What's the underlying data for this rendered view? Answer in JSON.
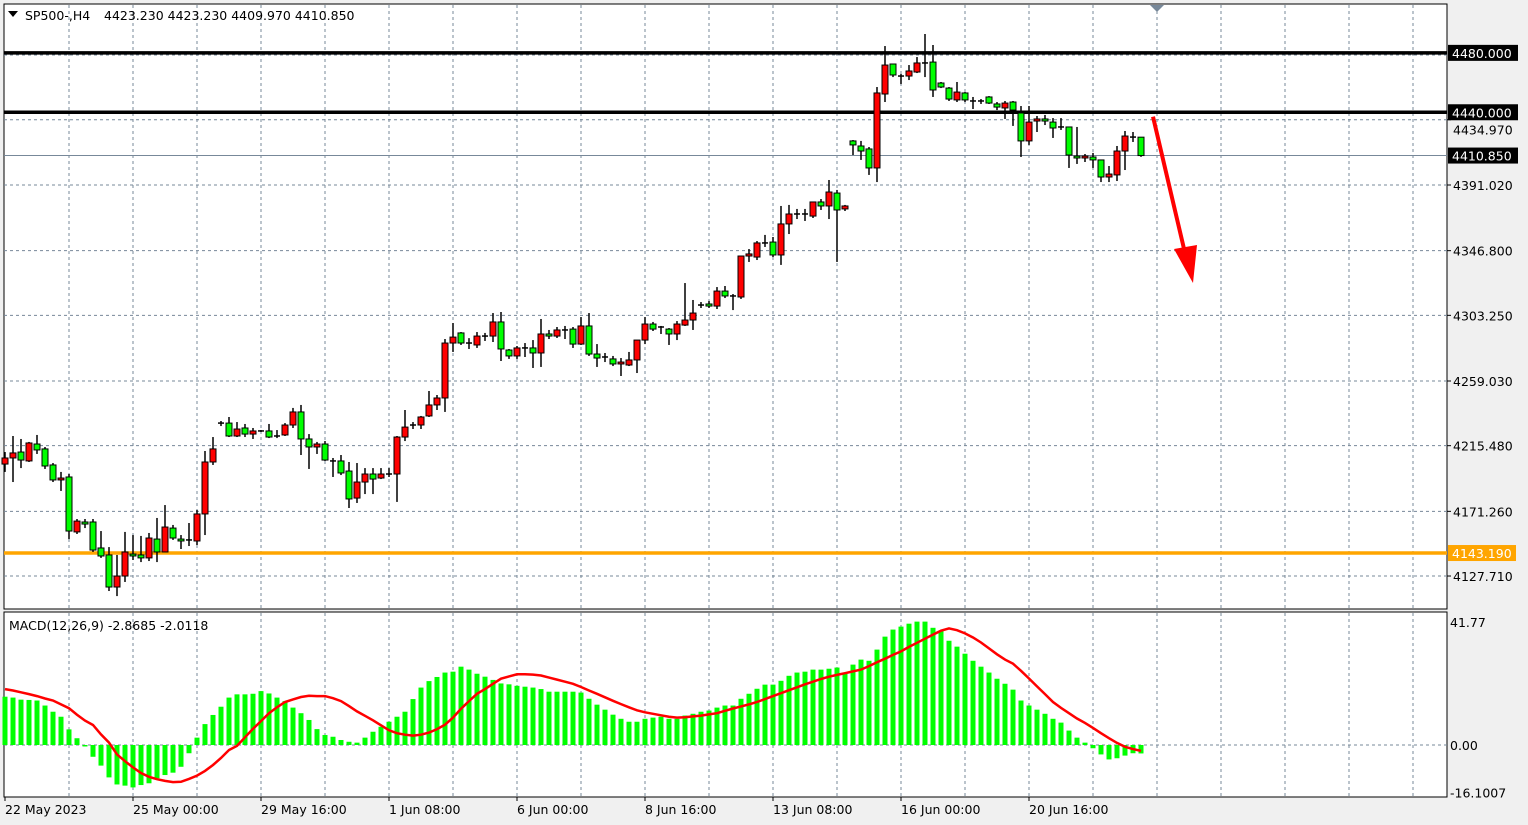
{
  "header": {
    "symbol_timeframe": "SP500-,H4",
    "ohlc": "4423.230 4423.230 4409.970 4410.850",
    "menu_icon": "triangle-down-icon"
  },
  "indicator": {
    "label": "MACD(12,26,9) -2.8685 -2.0118"
  },
  "colors": {
    "up_candle": "#ff0000",
    "down_candle": "#00ff00",
    "histogram": "#00ff00",
    "signal": "#ff0000",
    "support_line": "#ffa500",
    "level_line": "#000000",
    "arrow": "#ff0000",
    "grid": "#778899"
  },
  "chart_data": [
    {
      "type": "candlestick",
      "title": "",
      "price_axis_ticks": [
        "4434.970",
        "4391.020",
        "4346.800",
        "4303.250",
        "4259.030",
        "4215.480",
        "4171.260",
        "4127.710"
      ],
      "price_tick_values": [
        4434.97,
        4391.02,
        4346.8,
        4303.25,
        4259.03,
        4215.48,
        4171.26,
        4127.71
      ],
      "time_axis_ticks": [
        "22 May 2023",
        "25 May 00:00",
        "29 May 16:00",
        "1 Jun 08:00",
        "6 Jun 00:00",
        "8 Jun 16:00",
        "13 Jun 08:00",
        "16 Jun 00:00",
        "20 Jun 16:00"
      ],
      "time_tick_bar_index": [
        0,
        16,
        32,
        48,
        64,
        80,
        96,
        112,
        128
      ],
      "ylim": [
        4105,
        4495
      ],
      "grid": true,
      "horizontal_lines": [
        {
          "price": 4480.0,
          "label": "4480.000",
          "color": "#000000"
        },
        {
          "price": 4440.0,
          "label": "4440.000",
          "color": "#000000"
        },
        {
          "price": 4143.19,
          "label": "4143.190",
          "color": "#ffa500"
        }
      ],
      "current_price": {
        "price": 4410.85,
        "label": "4410.850"
      },
      "annotation_arrow": {
        "direction": "down",
        "from_price": 4437,
        "to_price": 4325
      },
      "candle_fields": [
        "open",
        "high",
        "low",
        "close"
      ],
      "candles": [
        [
          4203.1,
          4211.2,
          4197.8,
          4207.2
        ],
        [
          4207.2,
          4222.0,
          4191.0,
          4210.6
        ],
        [
          4211.2,
          4220.0,
          4200.4,
          4205.8
        ],
        [
          4205.2,
          4218.0,
          4204.5,
          4217.3
        ],
        [
          4216.6,
          4222.7,
          4209.9,
          4212.6
        ],
        [
          4213.3,
          4214.6,
          4199.8,
          4201.8
        ],
        [
          4202.5,
          4203.8,
          4191.0,
          4192.4
        ],
        [
          4192.4,
          4197.8,
          4185.0,
          4193.7
        ],
        [
          4194.4,
          4196.4,
          4152.6,
          4158.0
        ],
        [
          4157.4,
          4166.1,
          4156.0,
          4164.7
        ],
        [
          4164.1,
          4166.1,
          4160.0,
          4162.7
        ],
        [
          4164.1,
          4166.1,
          4143.9,
          4145.2
        ],
        [
          4146.6,
          4158.0,
          4139.9,
          4141.2
        ],
        [
          4141.9,
          4147.2,
          4117.6,
          4120.3
        ],
        [
          4120.3,
          4141.9,
          4114.2,
          4127.7
        ],
        [
          4127.7,
          4157.4,
          4123.7,
          4143.9
        ],
        [
          4142.5,
          4155.3,
          4138.5,
          4141.2
        ],
        [
          4141.9,
          4154.7,
          4137.1,
          4139.9
        ],
        [
          4139.9,
          4156.7,
          4137.8,
          4153.3
        ],
        [
          4152.6,
          4166.8,
          4137.1,
          4143.9
        ],
        [
          4143.9,
          4175.5,
          4143.9,
          4160.7
        ],
        [
          4160.0,
          4162.1,
          4152.0,
          4153.3
        ],
        [
          4152.6,
          4155.3,
          4145.9,
          4151.3
        ],
        [
          4151.3,
          4163.4,
          4147.9,
          4152.0
        ],
        [
          4151.3,
          4172.2,
          4148.6,
          4169.5
        ],
        [
          4169.5,
          4211.9,
          4155.3,
          4204.5
        ],
        [
          4204.5,
          4221.3,
          4202.5,
          4213.3
        ],
        [
          4230.7,
          4232.1,
          4228.7,
          4230.7
        ],
        [
          4230.7,
          4234.8,
          4221.3,
          4222.0
        ],
        [
          4222.0,
          4231.4,
          4221.3,
          4226.7
        ],
        [
          4227.4,
          4230.1,
          4221.3,
          4223.3
        ],
        [
          4223.3,
          4227.4,
          4220.0,
          4225.4
        ],
        [
          4225.4,
          4226.0,
          4224.7,
          4225.4
        ],
        [
          4225.4,
          4230.1,
          4220.6,
          4221.3
        ],
        [
          4222.0,
          4226.0,
          4220.6,
          4222.0
        ],
        [
          4222.7,
          4230.7,
          4222.0,
          4229.4
        ],
        [
          4229.4,
          4240.9,
          4227.4,
          4238.2
        ],
        [
          4238.2,
          4242.9,
          4209.2,
          4220.0
        ],
        [
          4220.0,
          4223.3,
          4199.8,
          4214.6
        ],
        [
          4214.6,
          4218.0,
          4209.9,
          4216.6
        ],
        [
          4216.6,
          4218.6,
          4205.2,
          4205.8
        ],
        [
          4205.2,
          4207.2,
          4194.4,
          4205.2
        ],
        [
          4205.2,
          4209.2,
          4195.7,
          4197.1
        ],
        [
          4198.4,
          4204.5,
          4173.5,
          4179.6
        ],
        [
          4180.2,
          4203.8,
          4176.9,
          4191.0
        ],
        [
          4191.0,
          4200.4,
          4182.9,
          4196.4
        ],
        [
          4196.4,
          4200.4,
          4182.9,
          4193.0
        ],
        [
          4193.7,
          4200.4,
          4193.0,
          4196.4
        ],
        [
          4196.4,
          4200.4,
          4194.4,
          4196.4
        ],
        [
          4196.4,
          4222.0,
          4177.6,
          4221.3
        ],
        [
          4221.3,
          4239.5,
          4218.6,
          4228.0
        ],
        [
          4229.4,
          4231.4,
          4226.7,
          4229.4
        ],
        [
          4229.4,
          4235.5,
          4226.7,
          4234.8
        ],
        [
          4235.5,
          4252.3,
          4234.8,
          4242.9
        ],
        [
          4242.9,
          4249.6,
          4239.5,
          4247.6
        ],
        [
          4247.6,
          4287.3,
          4238.2,
          4284.6
        ],
        [
          4284.6,
          4298.1,
          4278.6,
          4288.6
        ],
        [
          4291.4,
          4292.0,
          4283.3,
          4284.6
        ],
        [
          4284.6,
          4287.9,
          4280.6,
          4284.6
        ],
        [
          4283.3,
          4292.0,
          4281.3,
          4289.3
        ],
        [
          4289.3,
          4291.4,
          4286.0,
          4289.3
        ],
        [
          4289.3,
          4304.8,
          4285.3,
          4298.8
        ],
        [
          4298.8,
          4305.5,
          4272.5,
          4280.6
        ],
        [
          4279.9,
          4280.6,
          4273.9,
          4275.9
        ],
        [
          4275.9,
          4282.6,
          4273.9,
          4281.3
        ],
        [
          4281.3,
          4284.6,
          4275.2,
          4281.3
        ],
        [
          4281.3,
          4286.6,
          4267.8,
          4277.9
        ],
        [
          4277.9,
          4300.8,
          4268.5,
          4290.7
        ],
        [
          4290.7,
          4293.4,
          4287.3,
          4289.3
        ],
        [
          4289.3,
          4295.4,
          4288.0,
          4293.4
        ],
        [
          4293.4,
          4296.1,
          4287.3,
          4293.4
        ],
        [
          4294.0,
          4295.4,
          4281.3,
          4283.9
        ],
        [
          4283.9,
          4302.1,
          4283.3,
          4296.1
        ],
        [
          4296.1,
          4304.8,
          4275.9,
          4277.2
        ],
        [
          4277.2,
          4283.9,
          4268.5,
          4274.5
        ],
        [
          4275.2,
          4277.9,
          4271.8,
          4275.2
        ],
        [
          4273.9,
          4275.9,
          4269.1,
          4270.5
        ],
        [
          4270.5,
          4274.5,
          4262.4,
          4271.8
        ],
        [
          4269.8,
          4278.6,
          4269.1,
          4273.2
        ],
        [
          4273.2,
          4286.6,
          4264.4,
          4286.6
        ],
        [
          4286.6,
          4302.1,
          4283.9,
          4297.4
        ],
        [
          4297.4,
          4298.8,
          4292.7,
          4294.0
        ],
        [
          4295.4,
          4296.1,
          4290.7,
          4295.4
        ],
        [
          4294.0,
          4294.7,
          4283.3,
          4290.7
        ],
        [
          4290.7,
          4299.4,
          4286.6,
          4297.4
        ],
        [
          4296.7,
          4325.0,
          4296.1,
          4300.1
        ],
        [
          4300.1,
          4313.6,
          4293.4,
          4304.8
        ],
        [
          4310.2,
          4312.2,
          4308.2,
          4310.2
        ],
        [
          4310.9,
          4312.9,
          4308.2,
          4309.5
        ],
        [
          4309.5,
          4322.3,
          4307.5,
          4319.6
        ],
        [
          4319.6,
          4323.0,
          4314.9,
          4316.3
        ],
        [
          4316.3,
          4317.6,
          4306.8,
          4316.3
        ],
        [
          4315.6,
          4343.2,
          4314.3,
          4343.2
        ],
        [
          4343.2,
          4347.9,
          4339.2,
          4344.6
        ],
        [
          4342.5,
          4353.3,
          4340.5,
          4352.0
        ],
        [
          4352.0,
          4357.4,
          4349.3,
          4352.0
        ],
        [
          4352.6,
          4356.0,
          4342.5,
          4343.9
        ],
        [
          4343.9,
          4376.9,
          4337.2,
          4364.8
        ],
        [
          4364.8,
          4377.6,
          4358.0,
          4371.5
        ],
        [
          4371.5,
          4374.9,
          4368.1,
          4371.5
        ],
        [
          4371.5,
          4374.9,
          4366.8,
          4371.5
        ],
        [
          4370.1,
          4379.6,
          4368.8,
          4379.6
        ],
        [
          4379.6,
          4381.6,
          4374.2,
          4376.9
        ],
        [
          4376.9,
          4394.4,
          4368.1,
          4386.3
        ],
        [
          4385.6,
          4387.7,
          4339.2,
          4374.2
        ],
        [
          4374.9,
          4377.6,
          4373.5,
          4376.9
        ],
        [
          4420.7,
          4421.3,
          4411.2,
          4418.0
        ],
        [
          4417.3,
          4420.7,
          4407.9,
          4413.9
        ],
        [
          4415.3,
          4416.6,
          4397.8,
          4402.5
        ],
        [
          4402.5,
          4457.0,
          4393.0,
          4453.0
        ],
        [
          4452.3,
          4484.6,
          4446.9,
          4471.8
        ],
        [
          4472.5,
          4472.5,
          4463.7,
          4465.1
        ],
        [
          4464.4,
          4465.8,
          4459.0,
          4464.4
        ],
        [
          4464.4,
          4471.8,
          4461.7,
          4467.8
        ],
        [
          4467.1,
          4477.2,
          4466.4,
          4473.2
        ],
        [
          4473.2,
          4492.7,
          4463.7,
          4473.2
        ],
        [
          4473.8,
          4485.3,
          4450.3,
          4455.0
        ],
        [
          4459.7,
          4460.4,
          4456.3,
          4457.0
        ],
        [
          4456.3,
          4457.0,
          4447.6,
          4448.9
        ],
        [
          4448.3,
          4460.4,
          4446.9,
          4453.6
        ],
        [
          4453.0,
          4453.6,
          4446.9,
          4448.3
        ],
        [
          4447.6,
          4450.3,
          4442.2,
          4447.6
        ],
        [
          4447.6,
          4448.9,
          4445.6,
          4447.6
        ],
        [
          4450.3,
          4450.9,
          4445.6,
          4446.2
        ],
        [
          4445.6,
          4446.9,
          4441.5,
          4443.5
        ],
        [
          4442.9,
          4447.6,
          4435.5,
          4446.2
        ],
        [
          4446.9,
          4447.6,
          4430.8,
          4441.5
        ],
        [
          4439.5,
          4444.2,
          4409.9,
          4420.7
        ],
        [
          4420.7,
          4444.2,
          4418.0,
          4433.4
        ],
        [
          4434.1,
          4437.5,
          4426.7,
          4435.5
        ],
        [
          4435.5,
          4438.2,
          4431.4,
          4434.1
        ],
        [
          4433.4,
          4436.1,
          4422.7,
          4429.4
        ],
        [
          4430.1,
          4436.1,
          4428.1,
          4430.1
        ],
        [
          4430.1,
          4430.1,
          4402.5,
          4411.2
        ],
        [
          4410.5,
          4430.1,
          4405.2,
          4409.2
        ],
        [
          4409.2,
          4411.9,
          4406.5,
          4410.5
        ],
        [
          4409.9,
          4412.6,
          4402.5,
          4407.9
        ],
        [
          4407.9,
          4407.9,
          4393.0,
          4396.4
        ],
        [
          4396.4,
          4403.8,
          4393.0,
          4398.4
        ],
        [
          4397.8,
          4417.3,
          4393.7,
          4413.9
        ],
        [
          4413.9,
          4427.4,
          4401.1,
          4424.0
        ],
        [
          4423.3,
          4426.7,
          4420.0,
          4423.3
        ],
        [
          4423.23,
          4423.23,
          4409.97,
          4410.85
        ]
      ]
    },
    {
      "type": "bar",
      "title": "MACD(12,26,9)",
      "axis_ticks": [
        "41.77",
        "0.00",
        "-16.1007"
      ],
      "axis_tick_values": [
        41.77,
        0,
        -16.1007
      ],
      "ylim": [
        -16.1007,
        41.77
      ],
      "histogram": [
        16.4,
        16.1,
        15.4,
        15.3,
        15.1,
        13.4,
        11.3,
        9.6,
        5.3,
        2.3,
        -0.5,
        -4.0,
        -7.0,
        -11.0,
        -13.4,
        -13.8,
        -14.4,
        -13.6,
        -13.0,
        -11.3,
        -10.2,
        -9.4,
        -7.4,
        -2.8,
        2.5,
        7.1,
        10.2,
        13.0,
        16.1,
        17.2,
        17.2,
        17.4,
        18.3,
        17.5,
        16.1,
        14.9,
        12.7,
        10.8,
        8.5,
        5.4,
        3.4,
        2.8,
        1.7,
        1.1,
        0.8,
        2.5,
        4.5,
        6.2,
        7.9,
        9.6,
        11.3,
        15.6,
        19.5,
        21.7,
        23.1,
        24.6,
        24.9,
        26.6,
        25.6,
        24.2,
        23.2,
        22.1,
        20.9,
        20.6,
        20.1,
        19.8,
        19.5,
        19.0,
        18.1,
        18.1,
        18.1,
        18.1,
        17.8,
        15.7,
        13.7,
        12.0,
        10.3,
        8.9,
        7.9,
        7.9,
        8.9,
        9.3,
        9.6,
        8.9,
        8.9,
        10.0,
        10.6,
        11.3,
        11.7,
        12.7,
        13.4,
        13.4,
        15.7,
        17.4,
        19.1,
        20.5,
        20.5,
        21.8,
        23.5,
        24.6,
        24.9,
        25.6,
        25.6,
        25.9,
        26.3,
        24.2,
        27.3,
        29.0,
        28.6,
        32.4,
        36.8,
        39.2,
        40.2,
        41.2,
        41.9,
        41.9,
        39.8,
        38.8,
        35.4,
        33.4,
        31.0,
        28.6,
        26.6,
        24.6,
        22.5,
        20.8,
        18.8,
        15.1,
        13.4,
        12.0,
        10.6,
        8.9,
        7.6,
        4.9,
        2.5,
        0.8,
        -1.1,
        -3.2,
        -4.9,
        -4.5,
        -3.6,
        -2.8,
        -2.8685
      ],
      "signal": [
        19.0,
        18.5,
        17.9,
        17.3,
        16.6,
        15.8,
        15.1,
        13.8,
        12.5,
        10.3,
        8.3,
        6.8,
        3.6,
        0.8,
        -3.2,
        -5.5,
        -7.6,
        -9.5,
        -10.8,
        -11.6,
        -12.2,
        -12.6,
        -12.5,
        -11.5,
        -10.4,
        -8.8,
        -6.8,
        -4.4,
        -1.7,
        -0.3,
        2.6,
        5.5,
        8.1,
        10.8,
        12.8,
        14.6,
        15.5,
        16.3,
        16.7,
        16.6,
        16.6,
        15.9,
        14.9,
        13.2,
        11.4,
        9.9,
        8.4,
        6.7,
        5.0,
        4.0,
        3.5,
        3.2,
        3.5,
        4.2,
        5.4,
        6.9,
        9.3,
        12.3,
        14.9,
        17.4,
        19.0,
        20.8,
        22.5,
        23.3,
        24.0,
        24.0,
        23.9,
        23.6,
        22.9,
        22.2,
        21.5,
        20.8,
        19.7,
        18.5,
        17.4,
        16.2,
        15.0,
        13.9,
        12.8,
        11.8,
        11.1,
        10.6,
        10.1,
        9.6,
        9.3,
        9.4,
        9.7,
        10.0,
        10.4,
        10.8,
        11.6,
        12.4,
        13.1,
        13.8,
        14.6,
        15.6,
        16.6,
        17.6,
        18.6,
        19.6,
        20.6,
        21.5,
        22.4,
        23.2,
        23.8,
        24.4,
        25.0,
        25.6,
        26.8,
        28.1,
        29.3,
        30.6,
        31.8,
        33.3,
        34.7,
        36.1,
        37.5,
        38.8,
        39.6,
        39.0,
        37.9,
        36.5,
        34.8,
        32.8,
        30.8,
        29.0,
        27.6,
        25.2,
        22.6,
        19.9,
        17.3,
        14.6,
        12.6,
        10.8,
        9.0,
        7.5,
        5.8,
        4.0,
        2.3,
        0.7,
        -0.6,
        -1.4,
        -2.0118
      ]
    }
  ]
}
